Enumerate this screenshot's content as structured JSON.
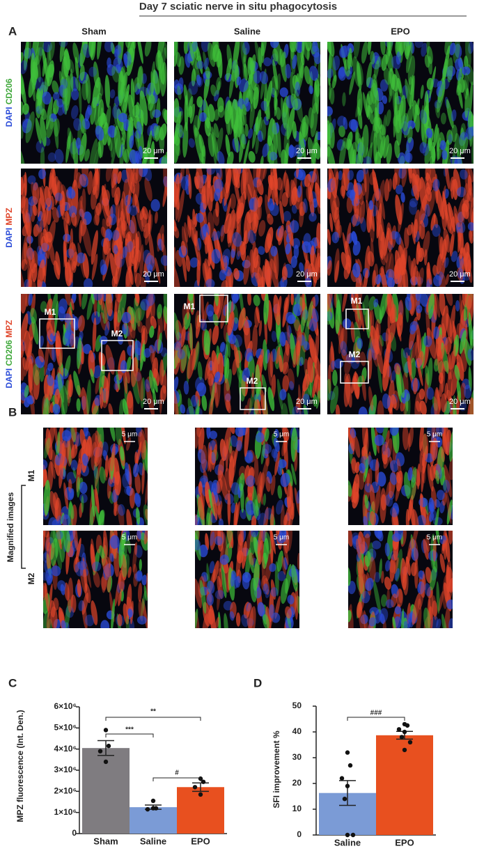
{
  "title": "Day 7 sciatic nerve in situ phagocytosis",
  "panel_labels": [
    "A",
    "B",
    "C",
    "D"
  ],
  "column_labels": [
    "Sham",
    "Saline",
    "EPO"
  ],
  "row_labels": [
    [
      "DAPI",
      "CD206"
    ],
    [
      "DAPI",
      "MPZ"
    ],
    [
      "DAPI",
      "CD206",
      "MPZ"
    ]
  ],
  "scale_bars_a": [
    "20 μm",
    "20 μm",
    "20 μm",
    "20 μm",
    "20 μm",
    "20 μm",
    "20 μm",
    "20 μm",
    "20 μm"
  ],
  "box_labels": [
    "M1",
    "M2",
    "M1",
    "M2",
    "M1",
    "M2"
  ],
  "magnified_label": "Magnified images",
  "magnified_rows": [
    "M1",
    "M2"
  ],
  "scale_bars_b": [
    "5 μm",
    "5 μm",
    "5 μm",
    "5 μm",
    "5 μm",
    "5 μm"
  ],
  "chart_data": [
    {
      "type": "bar",
      "ylabel": "MPZ fluorescence (Int. Den.)",
      "categories": [
        "Sham",
        "Saline",
        "EPO"
      ],
      "values": [
        4050000,
        1250000,
        2200000
      ],
      "errors": [
        350000,
        100000,
        200000
      ],
      "colors": [
        "#7f7c80",
        "#7b9bd6",
        "#e8501f"
      ],
      "points": [
        [
          4900000,
          4150000,
          3900000,
          3400000
        ],
        [
          1550000,
          1200000,
          1150000,
          1200000
        ],
        [
          2600000,
          2450000,
          2200000,
          1850000
        ]
      ],
      "ylim": [
        0,
        6000000
      ],
      "yticks": [
        0,
        {
          "value": 1000000,
          "label": "1×10⁶"
        },
        {
          "value": 2000000,
          "label": "2×10⁶"
        },
        {
          "value": 3000000,
          "label": "3×10⁶"
        },
        {
          "value": 4000000,
          "label": "4×10⁶"
        },
        {
          "value": 5000000,
          "label": "5×10⁶"
        },
        {
          "value": 6000000,
          "label": "6×10⁶"
        }
      ],
      "annotations": [
        "***",
        "**",
        "#"
      ]
    },
    {
      "type": "bar",
      "ylabel": "SFI improvement %",
      "categories": [
        "Saline",
        "EPO"
      ],
      "values": [
        16.3,
        38.7
      ],
      "errors": [
        4.8,
        1.5
      ],
      "colors": [
        "#7b9bd6",
        "#e8501f"
      ],
      "points": [
        [
          32,
          27,
          22,
          19,
          14,
          0,
          0
        ],
        [
          43,
          42.5,
          41,
          40,
          38,
          36,
          33
        ]
      ],
      "ylim": [
        0,
        50
      ],
      "yticks": [
        0,
        10,
        20,
        30,
        40,
        50
      ],
      "annotations": [
        "###"
      ]
    }
  ]
}
